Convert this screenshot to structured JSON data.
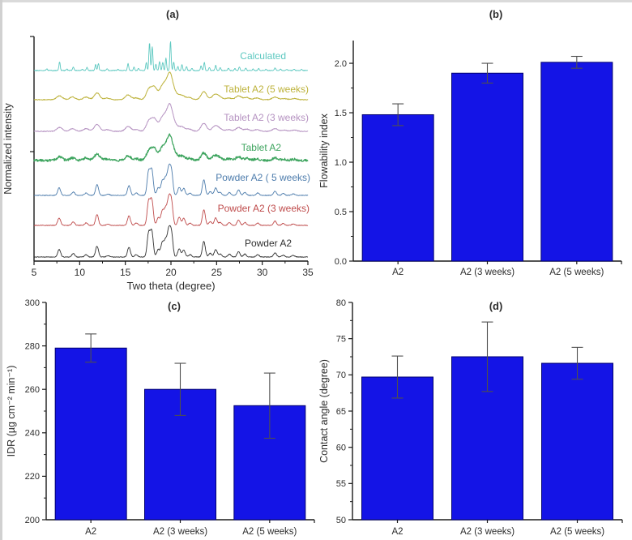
{
  "figure": {
    "background": "#ffffff",
    "text_color": "#2d2d2d",
    "axis_color": "#1a1a1a"
  },
  "chart_data": [
    {
      "id": "a",
      "type": "line",
      "title": "(a)",
      "xlabel": "Two theta (degree)",
      "ylabel": "Normalized intensity",
      "xlim": [
        5,
        35
      ],
      "xticks": [
        5,
        10,
        15,
        20,
        25,
        30,
        35
      ],
      "xtick_labels": [
        "5",
        "10",
        "15",
        "20",
        "25",
        "30",
        "35"
      ],
      "legend_position": "right-of-each-curve",
      "grid": false,
      "series": [
        {
          "name": "Calculated",
          "color": "#5cc8c0",
          "profile": "calculated"
        },
        {
          "name": "Tablet A2 (5 weeks)",
          "color": "#bdb23a",
          "profile": "tablet"
        },
        {
          "name": "Tablet A2 (3 weeks)",
          "color": "#b592c1",
          "profile": "tablet"
        },
        {
          "name": "Tablet A2",
          "color": "#3da45e",
          "profile": "tablet"
        },
        {
          "name": "Powder A2 ( 5 weeks)",
          "color": "#4d7cac",
          "profile": "powder"
        },
        {
          "name": "Powder A2 (3 weeks)",
          "color": "#bf4b4b",
          "profile": "powder"
        },
        {
          "name": "Powder A2",
          "color": "#2f2f2f",
          "profile": "powder"
        }
      ],
      "profiles": {
        "calculated": {
          "peak_width": 0.07,
          "peaks": [
            [
              6.4,
              0.06
            ],
            [
              7.8,
              0.3
            ],
            [
              8.6,
              0.05
            ],
            [
              9.3,
              0.13
            ],
            [
              10.3,
              0.05
            ],
            [
              10.8,
              0.11
            ],
            [
              11.75,
              0.2
            ],
            [
              12.05,
              0.24
            ],
            [
              13.0,
              0.06
            ],
            [
              14.2,
              0.04
            ],
            [
              15.3,
              0.24
            ],
            [
              15.95,
              0.11
            ],
            [
              16.45,
              0.07
            ],
            [
              17.3,
              0.28
            ],
            [
              17.65,
              0.95
            ],
            [
              17.95,
              0.82
            ],
            [
              18.35,
              0.22
            ],
            [
              18.75,
              0.32
            ],
            [
              19.1,
              0.28
            ],
            [
              19.45,
              0.42
            ],
            [
              19.95,
              1.0
            ],
            [
              20.3,
              0.28
            ],
            [
              20.75,
              0.14
            ],
            [
              21.2,
              0.2
            ],
            [
              21.7,
              0.14
            ],
            [
              22.3,
              0.07
            ],
            [
              23.3,
              0.16
            ],
            [
              23.65,
              0.28
            ],
            [
              24.2,
              0.11
            ],
            [
              24.9,
              0.18
            ],
            [
              25.4,
              0.11
            ],
            [
              26.3,
              0.09
            ],
            [
              27.0,
              0.07
            ],
            [
              27.5,
              0.13
            ],
            [
              28.2,
              0.09
            ],
            [
              29.0,
              0.05
            ],
            [
              29.6,
              0.07
            ],
            [
              30.4,
              0.04
            ],
            [
              31.4,
              0.09
            ],
            [
              32.0,
              0.05
            ],
            [
              32.7,
              0.04
            ],
            [
              33.5,
              0.05
            ],
            [
              34.3,
              0.04
            ]
          ]
        },
        "powder": {
          "peak_width": 0.16,
          "peaks": [
            [
              7.75,
              0.28
            ],
            [
              9.3,
              0.13
            ],
            [
              10.7,
              0.09
            ],
            [
              11.9,
              0.4
            ],
            [
              13.1,
              0.05
            ],
            [
              15.4,
              0.36
            ],
            [
              16.2,
              0.09
            ],
            [
              17.55,
              0.88
            ],
            [
              17.9,
              0.93
            ],
            [
              18.6,
              0.28
            ],
            [
              19.05,
              0.52
            ],
            [
              19.4,
              0.58
            ],
            [
              19.75,
              0.92
            ],
            [
              20.05,
              0.88
            ],
            [
              20.9,
              0.3
            ],
            [
              21.4,
              0.26
            ],
            [
              22.1,
              0.09
            ],
            [
              23.6,
              0.58
            ],
            [
              24.3,
              0.14
            ],
            [
              24.9,
              0.28
            ],
            [
              25.4,
              0.11
            ],
            [
              26.4,
              0.11
            ],
            [
              27.4,
              0.2
            ],
            [
              28.1,
              0.11
            ],
            [
              29.5,
              0.09
            ],
            [
              31.4,
              0.16
            ],
            [
              32.3,
              0.07
            ],
            [
              33.4,
              0.06
            ]
          ]
        },
        "tablet": {
          "peak_width": 0.3,
          "peaks": [
            [
              7.8,
              0.16
            ],
            [
              9.2,
              0.11
            ],
            [
              10.7,
              0.11
            ],
            [
              11.9,
              0.28
            ],
            [
              13.0,
              0.07
            ],
            [
              15.3,
              0.2
            ],
            [
              16.2,
              0.07
            ],
            [
              17.6,
              0.42
            ],
            [
              18.2,
              0.48
            ],
            [
              19.0,
              0.42
            ],
            [
              19.4,
              0.38
            ],
            [
              19.9,
              1.0
            ],
            [
              20.5,
              0.22
            ],
            [
              21.2,
              0.18
            ],
            [
              22.0,
              0.09
            ],
            [
              23.6,
              0.33
            ],
            [
              24.8,
              0.2
            ],
            [
              25.3,
              0.11
            ],
            [
              26.3,
              0.07
            ],
            [
              27.4,
              0.16
            ],
            [
              28.3,
              0.09
            ],
            [
              29.4,
              0.07
            ],
            [
              31.4,
              0.11
            ],
            [
              32.4,
              0.05
            ],
            [
              33.5,
              0.05
            ]
          ]
        }
      }
    },
    {
      "id": "b",
      "type": "bar",
      "title": "(b)",
      "ylabel": "Flowability index",
      "categories": [
        "A2",
        "A2 (3 weeks)",
        "A2 (5 weeks)"
      ],
      "values": [
        1.48,
        1.9,
        2.01
      ],
      "errors": [
        0.11,
        0.1,
        0.06
      ],
      "ylim": [
        0,
        2.23
      ],
      "yticks": [
        0,
        0.5,
        1,
        1.5,
        2
      ],
      "ytick_labels": [
        "0.0",
        "0.5",
        "1.0",
        "1.5",
        "2.0"
      ],
      "yminor": 0.25,
      "grid": false,
      "bar_color": "#1414e6",
      "bar_edge_color": "#000070",
      "error_color": "#4f4f4f"
    },
    {
      "id": "c",
      "type": "bar",
      "title": "(c)",
      "ylabel": "IDR (µg cm⁻² min⁻¹)",
      "categories": [
        "A2",
        "A2 (3 weeks)",
        "A2 (5 weeks)"
      ],
      "values": [
        279,
        260,
        252.5
      ],
      "errors": [
        6.5,
        12,
        15
      ],
      "ylim": [
        200,
        300
      ],
      "yticks": [
        200,
        220,
        240,
        260,
        280,
        300
      ],
      "ytick_labels": [
        "200",
        "220",
        "240",
        "260",
        "280",
        "300"
      ],
      "yminor": 10,
      "grid": false,
      "bar_color": "#1414e6",
      "bar_edge_color": "#000070",
      "error_color": "#4f4f4f"
    },
    {
      "id": "d",
      "type": "bar",
      "title": "(d)",
      "ylabel": "Contact angle (degree)",
      "categories": [
        "A2",
        "A2 (3 weeks)",
        "A2 (5 weeks)"
      ],
      "values": [
        69.7,
        72.5,
        71.6
      ],
      "errors": [
        2.9,
        4.8,
        2.2
      ],
      "ylim": [
        50,
        80
      ],
      "yticks": [
        50,
        55,
        60,
        65,
        70,
        75,
        80
      ],
      "ytick_labels": [
        "50",
        "55",
        "60",
        "65",
        "70",
        "75",
        "80"
      ],
      "yminor": 2.5,
      "grid": false,
      "bar_color": "#1414e6",
      "bar_edge_color": "#000070",
      "error_color": "#4f4f4f"
    }
  ]
}
